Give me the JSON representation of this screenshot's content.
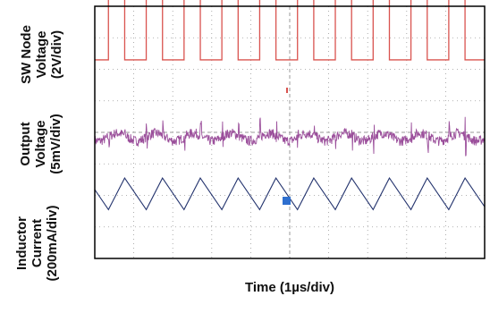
{
  "chart_data": {
    "type": "line",
    "title": "",
    "xlabel": "Time (1µs/div)",
    "grid": true,
    "x_divisions": 10,
    "y_divisions": 8,
    "xlim": [
      0,
      10
    ],
    "colors": {
      "sw_node": "#d9534f",
      "output": "#9b4f9b",
      "inductor": "#24346e",
      "marker": "#2e6fcf",
      "grid": "#9a9a9a",
      "frame": "#000000"
    },
    "channels": [
      {
        "label_lines": [
          "SW Node",
          "Voltage",
          "(2V/div)"
        ],
        "waveform": "square",
        "period_div": 0.97,
        "duty": 0.43,
        "high_div": 2.9,
        "low_div": 0.0,
        "baseline_div": 6.3
      },
      {
        "label_lines": [
          "Output",
          "Voltage",
          "(5mV/div)"
        ],
        "waveform": "ripple",
        "period_div": 0.97,
        "ripple_div": 0.35,
        "baseline_div": 3.85
      },
      {
        "label_lines": [
          "Inductor",
          "Current",
          "(200mA/div)"
        ],
        "waveform": "triangle",
        "period_div": 0.97,
        "rise_fraction": 0.43,
        "peak_div": 2.55,
        "valley_div": 1.55
      }
    ]
  }
}
